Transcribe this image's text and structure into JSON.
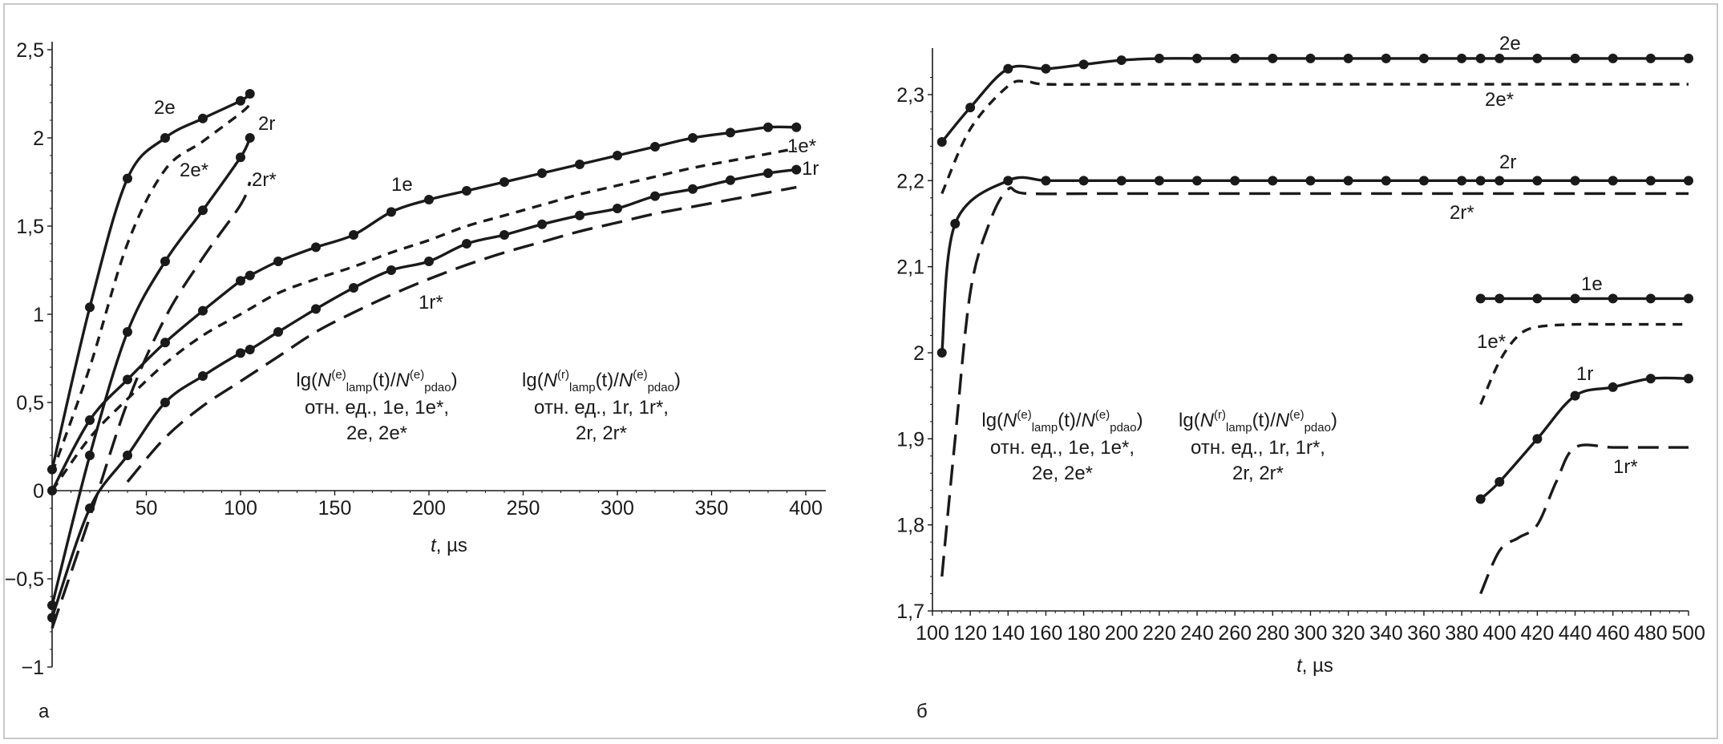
{
  "chart_data": [
    {
      "type": "line",
      "panel_label": "а",
      "xlabel_italic": "t",
      "xlabel_unit": ", µs",
      "ylabel": "",
      "xlim": [
        0,
        400
      ],
      "ylim": [
        -1,
        2.5
      ],
      "x_ticks": [
        50,
        100,
        150,
        200,
        250,
        300,
        350,
        400
      ],
      "x_tick_labels": [
        "50",
        "100",
        "150",
        "200",
        "250",
        "300",
        "350",
        "400"
      ],
      "y_ticks": [
        -1,
        -0.5,
        0,
        0.5,
        1,
        1.5,
        2,
        2.5
      ],
      "y_tick_labels": [
        "−1",
        "−0,5",
        "0",
        "0,5",
        "1",
        "1,5",
        "2",
        "2,5"
      ],
      "grid": false,
      "legend": "none",
      "series": [
        {
          "label": "2e",
          "style": "solid-markers",
          "x": [
            0,
            20,
            40,
            60,
            80,
            100,
            105
          ],
          "y": [
            0.12,
            1.04,
            1.77,
            2.0,
            2.11,
            2.21,
            2.25
          ]
        },
        {
          "label": "2e*",
          "style": "short-dash",
          "x": [
            0,
            20,
            40,
            60,
            80,
            100,
            105
          ],
          "y": [
            0.1,
            0.7,
            1.4,
            1.82,
            1.98,
            2.14,
            2.19
          ]
        },
        {
          "label": "2r",
          "style": "solid-markers",
          "x": [
            0,
            20,
            40,
            60,
            80,
            100,
            105
          ],
          "y": [
            -0.65,
            0.2,
            0.9,
            1.3,
            1.59,
            1.89,
            2.0
          ]
        },
        {
          "label": "2r*",
          "style": "long-dash",
          "x": [
            0,
            20,
            40,
            60,
            80,
            100,
            105
          ],
          "y": [
            -0.78,
            -0.15,
            0.5,
            0.98,
            1.32,
            1.62,
            1.75
          ]
        },
        {
          "label": "1e",
          "style": "solid-markers",
          "x": [
            0,
            20,
            40,
            60,
            80,
            100,
            105,
            120,
            140,
            160,
            180,
            200,
            220,
            240,
            260,
            280,
            300,
            320,
            340,
            360,
            380,
            395
          ],
          "y": [
            0.0,
            0.4,
            0.63,
            0.84,
            1.02,
            1.19,
            1.22,
            1.3,
            1.38,
            1.45,
            1.58,
            1.65,
            1.7,
            1.75,
            1.8,
            1.85,
            1.9,
            1.95,
            2.0,
            2.03,
            2.06,
            2.06
          ]
        },
        {
          "label": "1e*",
          "style": "short-dash",
          "x": [
            0,
            20,
            40,
            60,
            80,
            100,
            120,
            140,
            160,
            180,
            200,
            220,
            240,
            260,
            280,
            300,
            320,
            340,
            360,
            380,
            395
          ],
          "y": [
            0.0,
            0.3,
            0.52,
            0.72,
            0.88,
            1.0,
            1.12,
            1.2,
            1.27,
            1.35,
            1.42,
            1.5,
            1.56,
            1.62,
            1.68,
            1.73,
            1.78,
            1.83,
            1.87,
            1.91,
            1.94
          ]
        },
        {
          "label": "1r",
          "style": "solid-markers",
          "x": [
            0,
            20,
            40,
            60,
            80,
            100,
            105,
            120,
            140,
            160,
            180,
            200,
            220,
            240,
            260,
            280,
            300,
            320,
            340,
            360,
            380,
            395
          ],
          "y": [
            -0.72,
            -0.1,
            0.2,
            0.5,
            0.65,
            0.78,
            0.8,
            0.9,
            1.03,
            1.15,
            1.25,
            1.3,
            1.4,
            1.45,
            1.51,
            1.56,
            1.6,
            1.67,
            1.71,
            1.76,
            1.8,
            1.82
          ]
        },
        {
          "label": "1r*",
          "style": "long-dash",
          "x": [
            40,
            60,
            80,
            100,
            120,
            140,
            160,
            180,
            200,
            220,
            240,
            260,
            280,
            300,
            320,
            340,
            360,
            380,
            395
          ],
          "y": [
            0.05,
            0.3,
            0.48,
            0.62,
            0.76,
            0.9,
            1.01,
            1.11,
            1.2,
            1.28,
            1.35,
            1.41,
            1.47,
            1.52,
            1.57,
            1.61,
            1.65,
            1.69,
            1.72
          ]
        }
      ],
      "series_label_texts": [
        "2e",
        "2e*",
        "2r",
        "2r*",
        "1e",
        "1e*",
        "1r",
        "1r*"
      ],
      "annotations": [
        {
          "lines": [
            "lg(N(e)lamp(t)/N(e)pdao)",
            "отн. ед., 1е, 1е*,",
            "2е, 2е*"
          ]
        },
        {
          "lines": [
            "lg(N(r)lamp(t)/N(e)pdao)",
            "отн. ед., 1r, 1r*,",
            "2r, 2r*"
          ]
        }
      ]
    },
    {
      "type": "line",
      "panel_label": "б",
      "xlabel_italic": "t",
      "xlabel_unit": ", µs",
      "ylabel": "",
      "xlim": [
        100,
        500
      ],
      "ylim": [
        1.7,
        2.35
      ],
      "x_ticks": [
        100,
        120,
        140,
        160,
        180,
        200,
        220,
        240,
        260,
        280,
        300,
        320,
        340,
        360,
        380,
        400,
        420,
        440,
        460,
        480,
        500
      ],
      "x_tick_labels": [
        "100",
        "120",
        "140",
        "160",
        "180",
        "200",
        "220",
        "240",
        "260",
        "280",
        "300",
        "320",
        "340",
        "360",
        "380",
        "400",
        "420",
        "440",
        "460",
        "480",
        "500"
      ],
      "y_ticks": [
        1.7,
        1.8,
        1.9,
        2.0,
        2.1,
        2.2,
        2.3
      ],
      "y_tick_labels": [
        "1,7",
        "1,8",
        "1,9",
        "2",
        "2,1",
        "2,2",
        "2,3"
      ],
      "grid": false,
      "legend": "none",
      "series": [
        {
          "label": "2e",
          "style": "solid-markers",
          "x": [
            105,
            120,
            140,
            160,
            180,
            200,
            220,
            240,
            260,
            280,
            300,
            320,
            340,
            360,
            380,
            390,
            400,
            420,
            440,
            460,
            480,
            500
          ],
          "y": [
            2.245,
            2.285,
            2.33,
            2.33,
            2.335,
            2.34,
            2.342,
            2.342,
            2.342,
            2.342,
            2.342,
            2.342,
            2.342,
            2.342,
            2.342,
            2.342,
            2.342,
            2.342,
            2.342,
            2.342,
            2.342,
            2.342
          ]
        },
        {
          "label": "2e*",
          "style": "short-dash",
          "x": [
            105,
            120,
            140,
            150,
            160,
            200,
            300,
            400,
            500
          ],
          "y": [
            2.185,
            2.26,
            2.31,
            2.315,
            2.312,
            2.312,
            2.312,
            2.312,
            2.312
          ]
        },
        {
          "label": "2r",
          "style": "solid-markers",
          "x": [
            105,
            112,
            140,
            160,
            180,
            200,
            220,
            240,
            260,
            280,
            300,
            320,
            340,
            360,
            380,
            390,
            400,
            420,
            440,
            460,
            480,
            500
          ],
          "y": [
            2.0,
            2.15,
            2.2,
            2.2,
            2.2,
            2.2,
            2.2,
            2.2,
            2.2,
            2.2,
            2.2,
            2.2,
            2.2,
            2.2,
            2.2,
            2.2,
            2.2,
            2.2,
            2.2,
            2.2,
            2.2,
            2.2
          ]
        },
        {
          "label": "2r*",
          "style": "long-dash",
          "x": [
            105,
            112,
            120,
            130,
            140,
            150,
            200,
            300,
            400,
            500
          ],
          "y": [
            1.74,
            1.9,
            2.07,
            2.15,
            2.19,
            2.185,
            2.185,
            2.185,
            2.185,
            2.185
          ]
        },
        {
          "label": "1e",
          "style": "solid-markers",
          "x": [
            390,
            400,
            420,
            440,
            460,
            480,
            500
          ],
          "y": [
            2.063,
            2.063,
            2.063,
            2.063,
            2.063,
            2.063,
            2.063
          ]
        },
        {
          "label": "1e*",
          "style": "short-dash",
          "x": [
            390,
            400,
            410,
            420,
            440,
            460,
            480,
            500
          ],
          "y": [
            1.94,
            1.99,
            2.02,
            2.03,
            2.033,
            2.033,
            2.033,
            2.033
          ]
        },
        {
          "label": "1r",
          "style": "solid-markers",
          "x": [
            390,
            400,
            420,
            440,
            460,
            480,
            500
          ],
          "y": [
            1.83,
            1.85,
            1.9,
            1.95,
            1.96,
            1.97,
            1.97
          ]
        },
        {
          "label": "1r*",
          "style": "long-dash",
          "x": [
            390,
            400,
            410,
            420,
            430,
            440,
            460,
            480,
            500
          ],
          "y": [
            1.72,
            1.77,
            1.785,
            1.8,
            1.85,
            1.89,
            1.89,
            1.89,
            1.89
          ]
        }
      ],
      "series_label_texts": [
        "2e",
        "2e*",
        "2r",
        "2r*",
        "1e",
        "1e*",
        "1r",
        "1r*"
      ],
      "annotations": [
        {
          "lines": [
            "lg(N(e)lamp(t)/N(e)pdao)",
            "отн. ед., 1е, 1е*,",
            "2е, 2е*"
          ]
        },
        {
          "lines": [
            "lg(N(r)lamp(t)/N(e)pdao)",
            "отн. ед., 1r, 1r*,",
            "2r, 2r*"
          ]
        }
      ]
    }
  ],
  "annotation_text": {
    "lg_open": "lg(",
    "n": "N",
    "sup_e": "(e)",
    "sup_r": "(r)",
    "sub_lamp": "lamp",
    "t_part": "(t)/",
    "sub_pdao": "pdao",
    "close": ")",
    "line2_e": "отн. ед., 1е, 1е*,",
    "line3_e": "2е, 2е*",
    "line2_r": "отн. ед., 1r, 1r*,",
    "line3_r": "2r, 2r*"
  }
}
